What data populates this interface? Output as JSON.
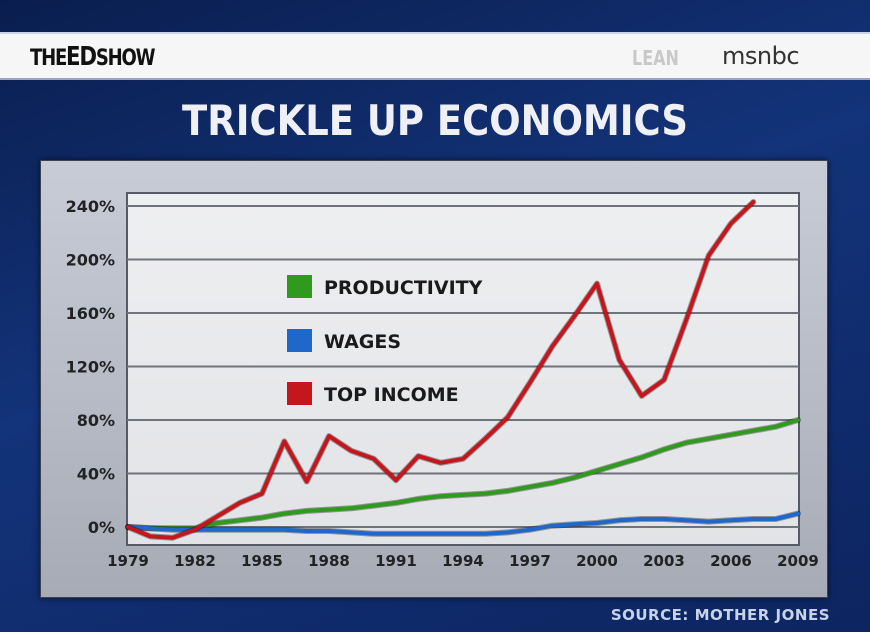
{
  "broadcast": {
    "show_name_prefix": "THE",
    "show_name_ed": "ED",
    "show_name_suffix": "SHOW",
    "network_tag": "LEAN",
    "network": "msnbc"
  },
  "source": "SOURCE: MOTHER JONES",
  "chart_data": {
    "type": "line",
    "title": "TRICKLE UP ECONOMICS",
    "xlabel": "",
    "ylabel": "",
    "ylim": [
      -10,
      250
    ],
    "yticks": [
      "0%",
      "40%",
      "80%",
      "120%",
      "160%",
      "200%",
      "240%"
    ],
    "ytick_values": [
      0,
      40,
      80,
      120,
      160,
      200,
      240
    ],
    "xticks": [
      "1979",
      "1982",
      "1985",
      "1988",
      "1991",
      "1994",
      "1997",
      "2000",
      "2003",
      "2006",
      "2009"
    ],
    "grid": true,
    "legend_position": "upper-left-inside",
    "series": [
      {
        "name": "PRODUCTIVITY",
        "color": "#2f9a1e",
        "x": [
          1979,
          1980,
          1981,
          1982,
          1983,
          1984,
          1985,
          1986,
          1987,
          1988,
          1989,
          1990,
          1991,
          1992,
          1993,
          1994,
          1995,
          1996,
          1997,
          1998,
          1999,
          2000,
          2001,
          2002,
          2003,
          2004,
          2005,
          2006,
          2007,
          2008,
          2009
        ],
        "values": [
          0,
          -1,
          -1,
          -1,
          3,
          5,
          7,
          10,
          12,
          13,
          14,
          16,
          18,
          21,
          23,
          24,
          25,
          27,
          30,
          33,
          37,
          42,
          47,
          52,
          58,
          63,
          66,
          69,
          72,
          75,
          80
        ]
      },
      {
        "name": "WAGES",
        "color": "#1f68c9",
        "x": [
          1979,
          1980,
          1981,
          1982,
          1983,
          1984,
          1985,
          1986,
          1987,
          1988,
          1989,
          1990,
          1991,
          1992,
          1993,
          1994,
          1995,
          1996,
          1997,
          1998,
          1999,
          2000,
          2001,
          2002,
          2003,
          2004,
          2005,
          2006,
          2007,
          2008,
          2009
        ],
        "values": [
          0,
          -1,
          -2,
          -2,
          -2,
          -2,
          -2,
          -2,
          -3,
          -3,
          -4,
          -5,
          -5,
          -5,
          -5,
          -5,
          -5,
          -4,
          -2,
          1,
          2,
          3,
          5,
          6,
          6,
          5,
          4,
          5,
          6,
          6,
          10
        ]
      },
      {
        "name": "TOP INCOME",
        "color": "#c4161c",
        "x": [
          1979,
          1980,
          1981,
          1982,
          1983,
          1984,
          1985,
          1986,
          1987,
          1988,
          1989,
          1990,
          1991,
          1992,
          1993,
          1994,
          1995,
          1996,
          1997,
          1998,
          1999,
          2000,
          2001,
          2002,
          2003,
          2004,
          2005,
          2006,
          2007
        ],
        "values": [
          0,
          -7,
          -8,
          -2,
          8,
          18,
          25,
          64,
          34,
          68,
          57,
          51,
          35,
          53,
          48,
          51,
          66,
          82,
          108,
          135,
          158,
          182,
          125,
          98,
          110,
          155,
          203,
          227,
          243
        ]
      }
    ]
  }
}
